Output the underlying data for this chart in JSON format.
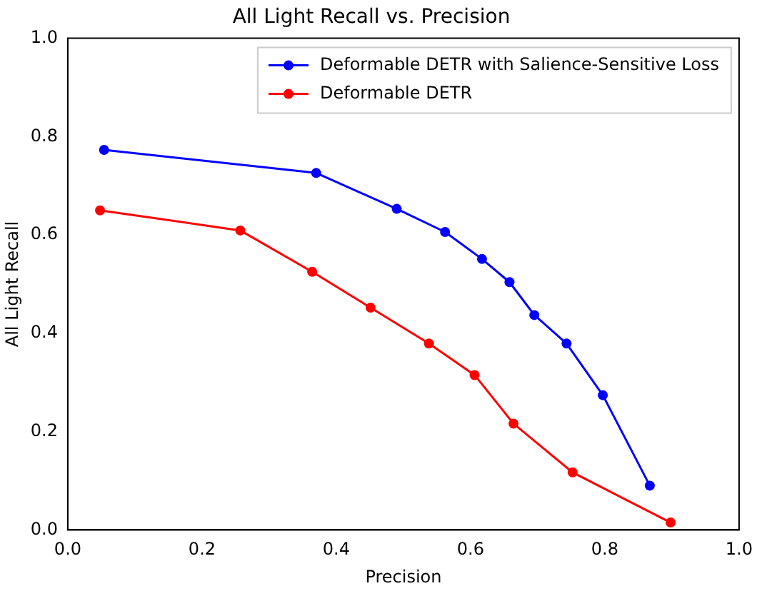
{
  "chart_data": {
    "type": "line",
    "title": "All Light Recall vs. Precision",
    "xlabel": "Precision",
    "ylabel": "All Light Recall",
    "series": [
      {
        "name": "Deformable DETR with Salience-Sensitive Loss",
        "color": "#0000ff",
        "x": [
          0.054,
          0.37,
          0.49,
          0.562,
          0.617,
          0.658,
          0.695,
          0.743,
          0.797,
          0.867
        ],
        "values": [
          0.773,
          0.726,
          0.653,
          0.606,
          0.551,
          0.504,
          0.437,
          0.379,
          0.274,
          0.09
        ]
      },
      {
        "name": "Deformable DETR",
        "color": "#ff0000",
        "x": [
          0.048,
          0.257,
          0.364,
          0.451,
          0.538,
          0.606,
          0.664,
          0.752,
          0.898
        ],
        "values": [
          0.65,
          0.609,
          0.525,
          0.452,
          0.379,
          0.315,
          0.216,
          0.117,
          0.015
        ]
      }
    ],
    "xlim": [
      0,
      1
    ],
    "xticks": [
      {
        "value": 0,
        "label": "0.0"
      },
      {
        "value": 0.2,
        "label": "0.2"
      },
      {
        "value": 0.4,
        "label": "0.4"
      },
      {
        "value": 0.6,
        "label": "0.6"
      },
      {
        "value": 0.8,
        "label": "0.8"
      },
      {
        "value": 1,
        "label": "1.0"
      }
    ],
    "ylim": [
      0,
      1
    ],
    "yticks": [
      {
        "value": 0,
        "label": "0.0"
      },
      {
        "value": 0.2,
        "label": "0.2"
      },
      {
        "value": 0.4,
        "label": "0.4"
      },
      {
        "value": 0.6,
        "label": "0.6"
      },
      {
        "value": 0.8,
        "label": "0.8"
      },
      {
        "value": 1,
        "label": "1.0"
      }
    ],
    "grid": false,
    "legend": "top right",
    "marker": "circle",
    "line_style": "solid"
  }
}
